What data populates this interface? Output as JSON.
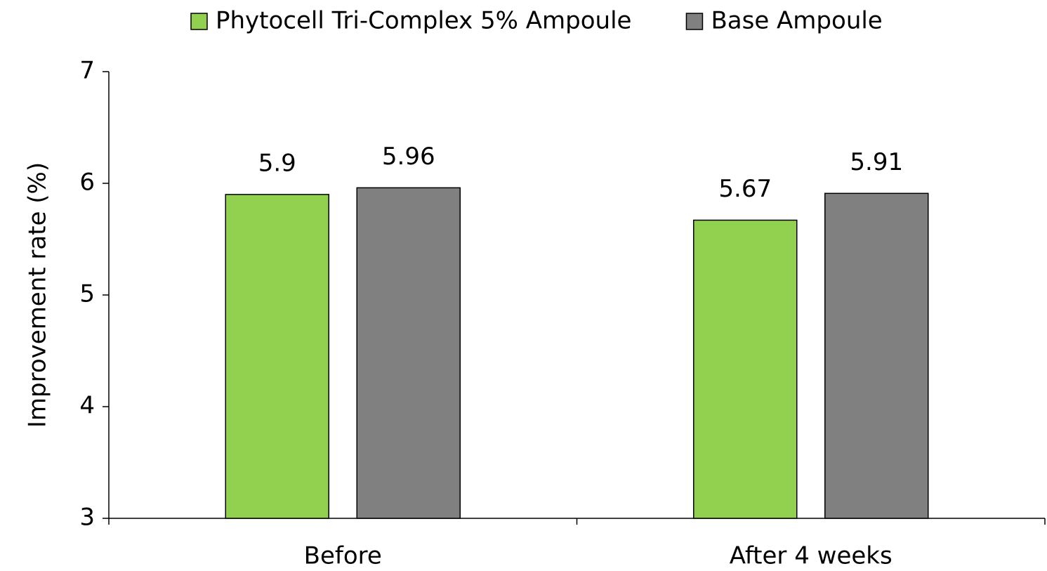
{
  "chart_data": {
    "type": "bar",
    "categories": [
      "Before",
      "After 4 weeks"
    ],
    "series": [
      {
        "name": "Phytocell Tri-Complex 5% Ampoule",
        "color": "#92d050",
        "values": [
          5.9,
          5.67
        ]
      },
      {
        "name": "Base Ampoule",
        "color": "#808080",
        "values": [
          5.96,
          5.91
        ]
      }
    ],
    "ylabel": "Improvement rate (%)",
    "ylim": [
      3,
      7
    ],
    "yticks": [
      3,
      4,
      5,
      6,
      7
    ],
    "legend": "top"
  }
}
